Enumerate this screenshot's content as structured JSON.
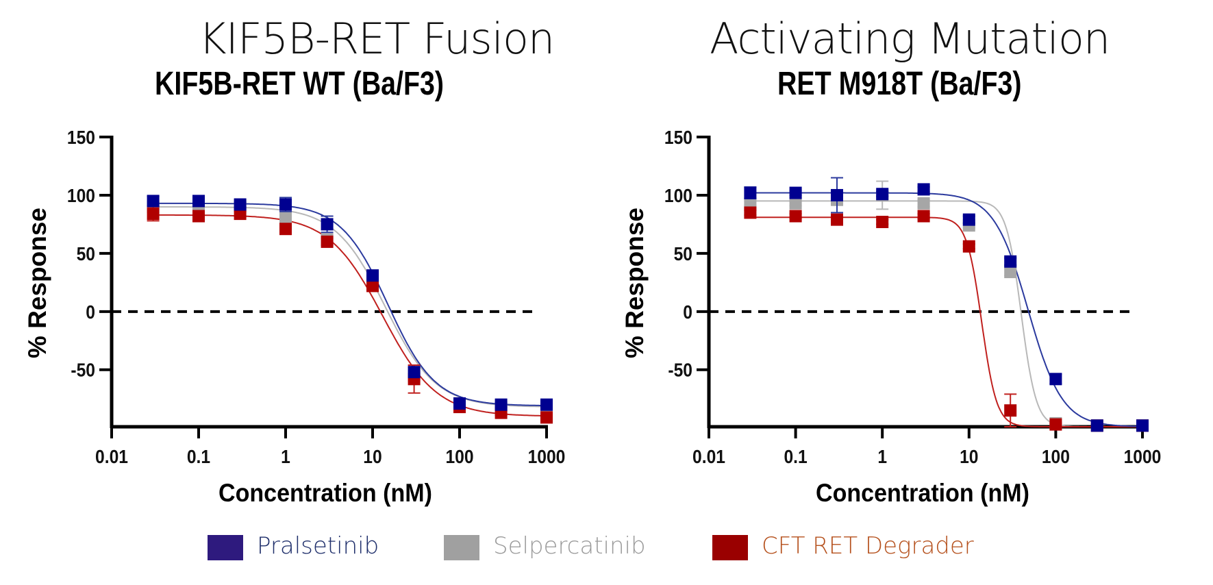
{
  "colors": {
    "pralsetinib_marker": "#000090",
    "pralsetinib_curve": "#2B3A9E",
    "pralsetinib_text": "#1F2F6B",
    "pralsetinib_swatch": "#2E1A7E",
    "selpercatinib_marker": "#A6A6A6",
    "selpercatinib_curve": "#B8B8B8",
    "selpercatinib_text": "#9A9A9A",
    "selpercatinib_swatch": "#A0A0A0",
    "degrader_marker": "#B00000",
    "degrader_curve": "#C0201E",
    "degrader_text": "#B5501C",
    "degrader_swatch": "#9A0000"
  },
  "legend": [
    {
      "label": "Pralsetinib",
      "key": "pralsetinib"
    },
    {
      "label": "Selpercatinib",
      "key": "selpercatinib"
    },
    {
      "label": "CFT RET Degrader",
      "key": "degrader"
    }
  ],
  "chart_data": [
    {
      "type": "scatter",
      "section_title": "KIF5B-RET Fusion",
      "title": "KIF5B-RET WT (Ba/F3)",
      "xlabel": "Concentration (nM)",
      "ylabel": "% Response",
      "xscale": "log",
      "xlim": [
        0.01,
        1000
      ],
      "ylim": [
        -99,
        150
      ],
      "xticks": [
        "0.01",
        "0.1",
        "1",
        "10",
        "100",
        "1000"
      ],
      "yticks": [
        "150",
        "100",
        "50",
        "0",
        "-50"
      ],
      "reference_line": {
        "y": 0,
        "style": "dashed"
      },
      "x": [
        0.03,
        0.1,
        0.3,
        1,
        3,
        10,
        30,
        100,
        300,
        1000
      ],
      "series": [
        {
          "name": "Pralsetinib",
          "key": "pralsetinib",
          "values": [
            95,
            95,
            92,
            92,
            75,
            31,
            -52,
            -79,
            -80,
            -80
          ],
          "errors": [
            4,
            3,
            2,
            6,
            7,
            2,
            4,
            2,
            2,
            3
          ],
          "fit": {
            "top": 93,
            "bottom": -81,
            "ec50": 15,
            "hill": 1.6
          }
        },
        {
          "name": "Selpercatinib",
          "key": "selpercatinib",
          "values": [
            90,
            87,
            91,
            81,
            62,
            24,
            -55,
            -80,
            -81,
            -82
          ],
          "errors": [
            2,
            2,
            2,
            3,
            3,
            2,
            3,
            2,
            2,
            2
          ],
          "fit": {
            "top": 90,
            "bottom": -82,
            "ec50": 14,
            "hill": 1.5
          }
        },
        {
          "name": "CFT RET Degrader",
          "key": "degrader",
          "values": [
            84,
            82,
            84,
            71,
            60,
            22,
            -58,
            -82,
            -87,
            -91
          ],
          "errors": [
            6,
            2,
            2,
            2,
            3,
            2,
            12,
            2,
            2,
            2
          ],
          "fit": {
            "top": 83,
            "bottom": -90,
            "ec50": 13,
            "hill": 1.4
          }
        }
      ]
    },
    {
      "type": "scatter",
      "section_title": "Activating Mutation",
      "title": "RET M918T (Ba/F3)",
      "xlabel": "Concentration (nM)",
      "ylabel": "% Response",
      "xscale": "log",
      "xlim": [
        0.01,
        1000
      ],
      "ylim": [
        -99,
        150
      ],
      "xticks": [
        "0.01",
        "0.1",
        "1",
        "10",
        "100",
        "1000"
      ],
      "yticks": [
        "150",
        "100",
        "50",
        "0",
        "-50"
      ],
      "reference_line": {
        "y": 0,
        "style": "dashed"
      },
      "x": [
        0.03,
        0.1,
        0.3,
        1,
        3,
        10,
        30,
        100,
        300,
        1000
      ],
      "series": [
        {
          "name": "Pralsetinib",
          "key": "pralsetinib",
          "values": [
            102,
            102,
            100,
            101,
            105,
            79,
            43,
            -58,
            -98,
            -98
          ],
          "errors": [
            5,
            2,
            15,
            2,
            2,
            3,
            3,
            4,
            1,
            1
          ],
          "fit": {
            "top": 102,
            "bottom": -99,
            "ec50": 48,
            "hill": 2.2
          }
        },
        {
          "name": "Selpercatinib",
          "key": "selpercatinib",
          "values": [
            93,
            93,
            96,
            100,
            93,
            74,
            34,
            -96,
            -98,
            -98
          ],
          "errors": [
            2,
            2,
            2,
            12,
            3,
            2,
            3,
            1,
            1,
            1
          ],
          "fit": {
            "top": 95,
            "bottom": -99,
            "ec50": 40,
            "hill": 5
          }
        },
        {
          "name": "CFT RET Degrader",
          "key": "degrader",
          "values": [
            85,
            82,
            79,
            77,
            82,
            56,
            -85,
            -97,
            -98,
            -98
          ],
          "errors": [
            2,
            2,
            2,
            2,
            2,
            2,
            14,
            1,
            1,
            1
          ],
          "fit": {
            "top": 81,
            "bottom": -99,
            "ec50": 14,
            "hill": 5
          }
        }
      ]
    }
  ]
}
